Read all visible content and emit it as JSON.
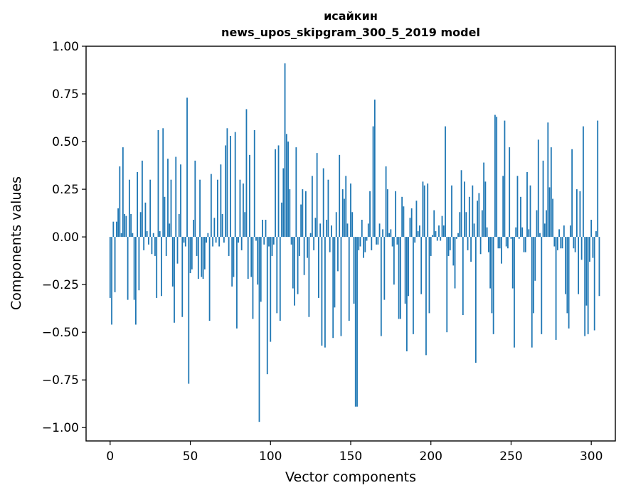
{
  "chart_data": {
    "type": "bar",
    "title": "исайкин",
    "subtitle": "news_upos_skipgram_300_5_2019 model",
    "xlabel": "Vector components",
    "ylabel": "Components values",
    "xlim": [
      -15,
      315
    ],
    "ylim": [
      -1.07,
      1.0
    ],
    "xticks": [
      0,
      50,
      100,
      150,
      200,
      250,
      300
    ],
    "xtick_labels": [
      "0",
      "50",
      "100",
      "150",
      "200",
      "250",
      "300"
    ],
    "yticks": [
      1.0,
      0.75,
      0.5,
      0.25,
      0.0,
      -0.25,
      -0.5,
      -0.75,
      -1.0
    ],
    "ytick_labels": [
      "1.00",
      "0.75",
      "0.50",
      "0.25",
      "0.00",
      "−0.25",
      "−0.50",
      "−0.75",
      "−1.00"
    ],
    "grid": false,
    "bar_color": "#1f77b4",
    "x_start": 0,
    "values": [
      -0.32,
      -0.46,
      0.08,
      -0.29,
      0.08,
      0.15,
      0.37,
      0.02,
      0.47,
      0.12,
      0.11,
      -0.33,
      0.3,
      0.12,
      0.02,
      -0.33,
      -0.46,
      0.34,
      -0.28,
      0.13,
      0.4,
      -0.07,
      0.18,
      0.03,
      -0.04,
      0.3,
      -0.09,
      0.02,
      -0.1,
      -0.32,
      0.56,
      0.03,
      -0.31,
      0.57,
      0.21,
      -0.1,
      0.41,
      0.07,
      0.3,
      -0.26,
      -0.45,
      0.42,
      -0.14,
      0.12,
      0.38,
      -0.42,
      -0.03,
      -0.05,
      0.73,
      -0.77,
      -0.19,
      -0.17,
      0.09,
      0.4,
      -0.1,
      -0.22,
      0.3,
      -0.21,
      -0.22,
      -0.17,
      -0.03,
      0.02,
      -0.44,
      0.33,
      -0.05,
      0.1,
      -0.03,
      0.3,
      -0.05,
      0.38,
      0.12,
      -0.03,
      0.48,
      0.57,
      -0.1,
      0.53,
      -0.26,
      -0.21,
      0.55,
      -0.48,
      -0.03,
      0.3,
      -0.07,
      0.28,
      0.13,
      0.67,
      -0.22,
      0.43,
      -0.21,
      -0.43,
      0.56,
      -0.02,
      -0.25,
      -0.97,
      -0.34,
      0.09,
      -0.04,
      0.09,
      -0.72,
      -0.05,
      -0.55,
      -0.1,
      -0.04,
      0.46,
      -0.4,
      0.48,
      -0.44,
      0.18,
      0.36,
      0.91,
      0.54,
      0.5,
      0.25,
      -0.04,
      -0.27,
      -0.36,
      0.47,
      -0.3,
      -0.1,
      0.17,
      0.25,
      -0.2,
      0.24,
      -0.11,
      -0.42,
      0.02,
      0.32,
      -0.07,
      0.1,
      0.44,
      -0.32,
      0.07,
      -0.57,
      0.36,
      -0.58,
      0.09,
      0.3,
      -0.08,
      0.06,
      -0.53,
      -0.37,
      0.13,
      -0.18,
      0.43,
      -0.52,
      0.25,
      0.2,
      0.32,
      0.07,
      -0.44,
      0.28,
      0.13,
      -0.35,
      -0.89,
      -0.89,
      -0.07,
      -0.05,
      0.09,
      -0.11,
      -0.08,
      -0.02,
      0.07,
      0.24,
      -0.07,
      0.58,
      0.72,
      -0.04,
      -0.04,
      0.07,
      -0.52,
      0.04,
      -0.33,
      0.37,
      0.25,
      0.02,
      0.04,
      -0.05,
      -0.25,
      0.24,
      -0.04,
      -0.43,
      -0.43,
      0.21,
      0.16,
      -0.35,
      -0.6,
      -0.31,
      0.1,
      0.15,
      -0.51,
      -0.03,
      0.19,
      0.03,
      0.06,
      -0.3,
      0.29,
      0.27,
      -0.62,
      0.28,
      -0.4,
      -0.1,
      0.01,
      0.14,
      0.03,
      -0.02,
      0.06,
      -0.02,
      0.11,
      0.06,
      0.58,
      -0.5,
      -0.1,
      -0.07,
      0.27,
      -0.15,
      -0.27,
      -0.01,
      0.02,
      0.13,
      0.35,
      -0.41,
      0.29,
      0.13,
      -0.07,
      0.21,
      -0.13,
      0.27,
      0.07,
      -0.66,
      0.19,
      0.23,
      -0.09,
      0.14,
      0.39,
      0.29,
      0.05,
      -0.08,
      -0.27,
      -0.4,
      -0.51,
      0.64,
      0.63,
      -0.06,
      -0.06,
      -0.14,
      0.32,
      0.61,
      -0.05,
      -0.06,
      0.47,
      -0.01,
      -0.27,
      -0.58,
      0.05,
      0.32,
      -0.01,
      0.21,
      0.05,
      -0.08,
      -0.08,
      0.34,
      0.04,
      0.27,
      -0.58,
      -0.4,
      -0.23,
      0.14,
      0.51,
      0.02,
      -0.51,
      0.4,
      0.07,
      0.14,
      0.6,
      0.26,
      0.47,
      0.2,
      -0.05,
      -0.54,
      -0.07,
      0.04,
      -0.06,
      -0.06,
      0.06,
      -0.3,
      -0.4,
      -0.48,
      0.06,
      0.46,
      -0.06,
      -0.08,
      0.25,
      -0.3,
      0.24,
      -0.12,
      0.58,
      -0.52,
      -0.36,
      -0.51,
      -0.13,
      0.09,
      -0.11,
      -0.49,
      0.03,
      0.61,
      -0.31
    ]
  }
}
